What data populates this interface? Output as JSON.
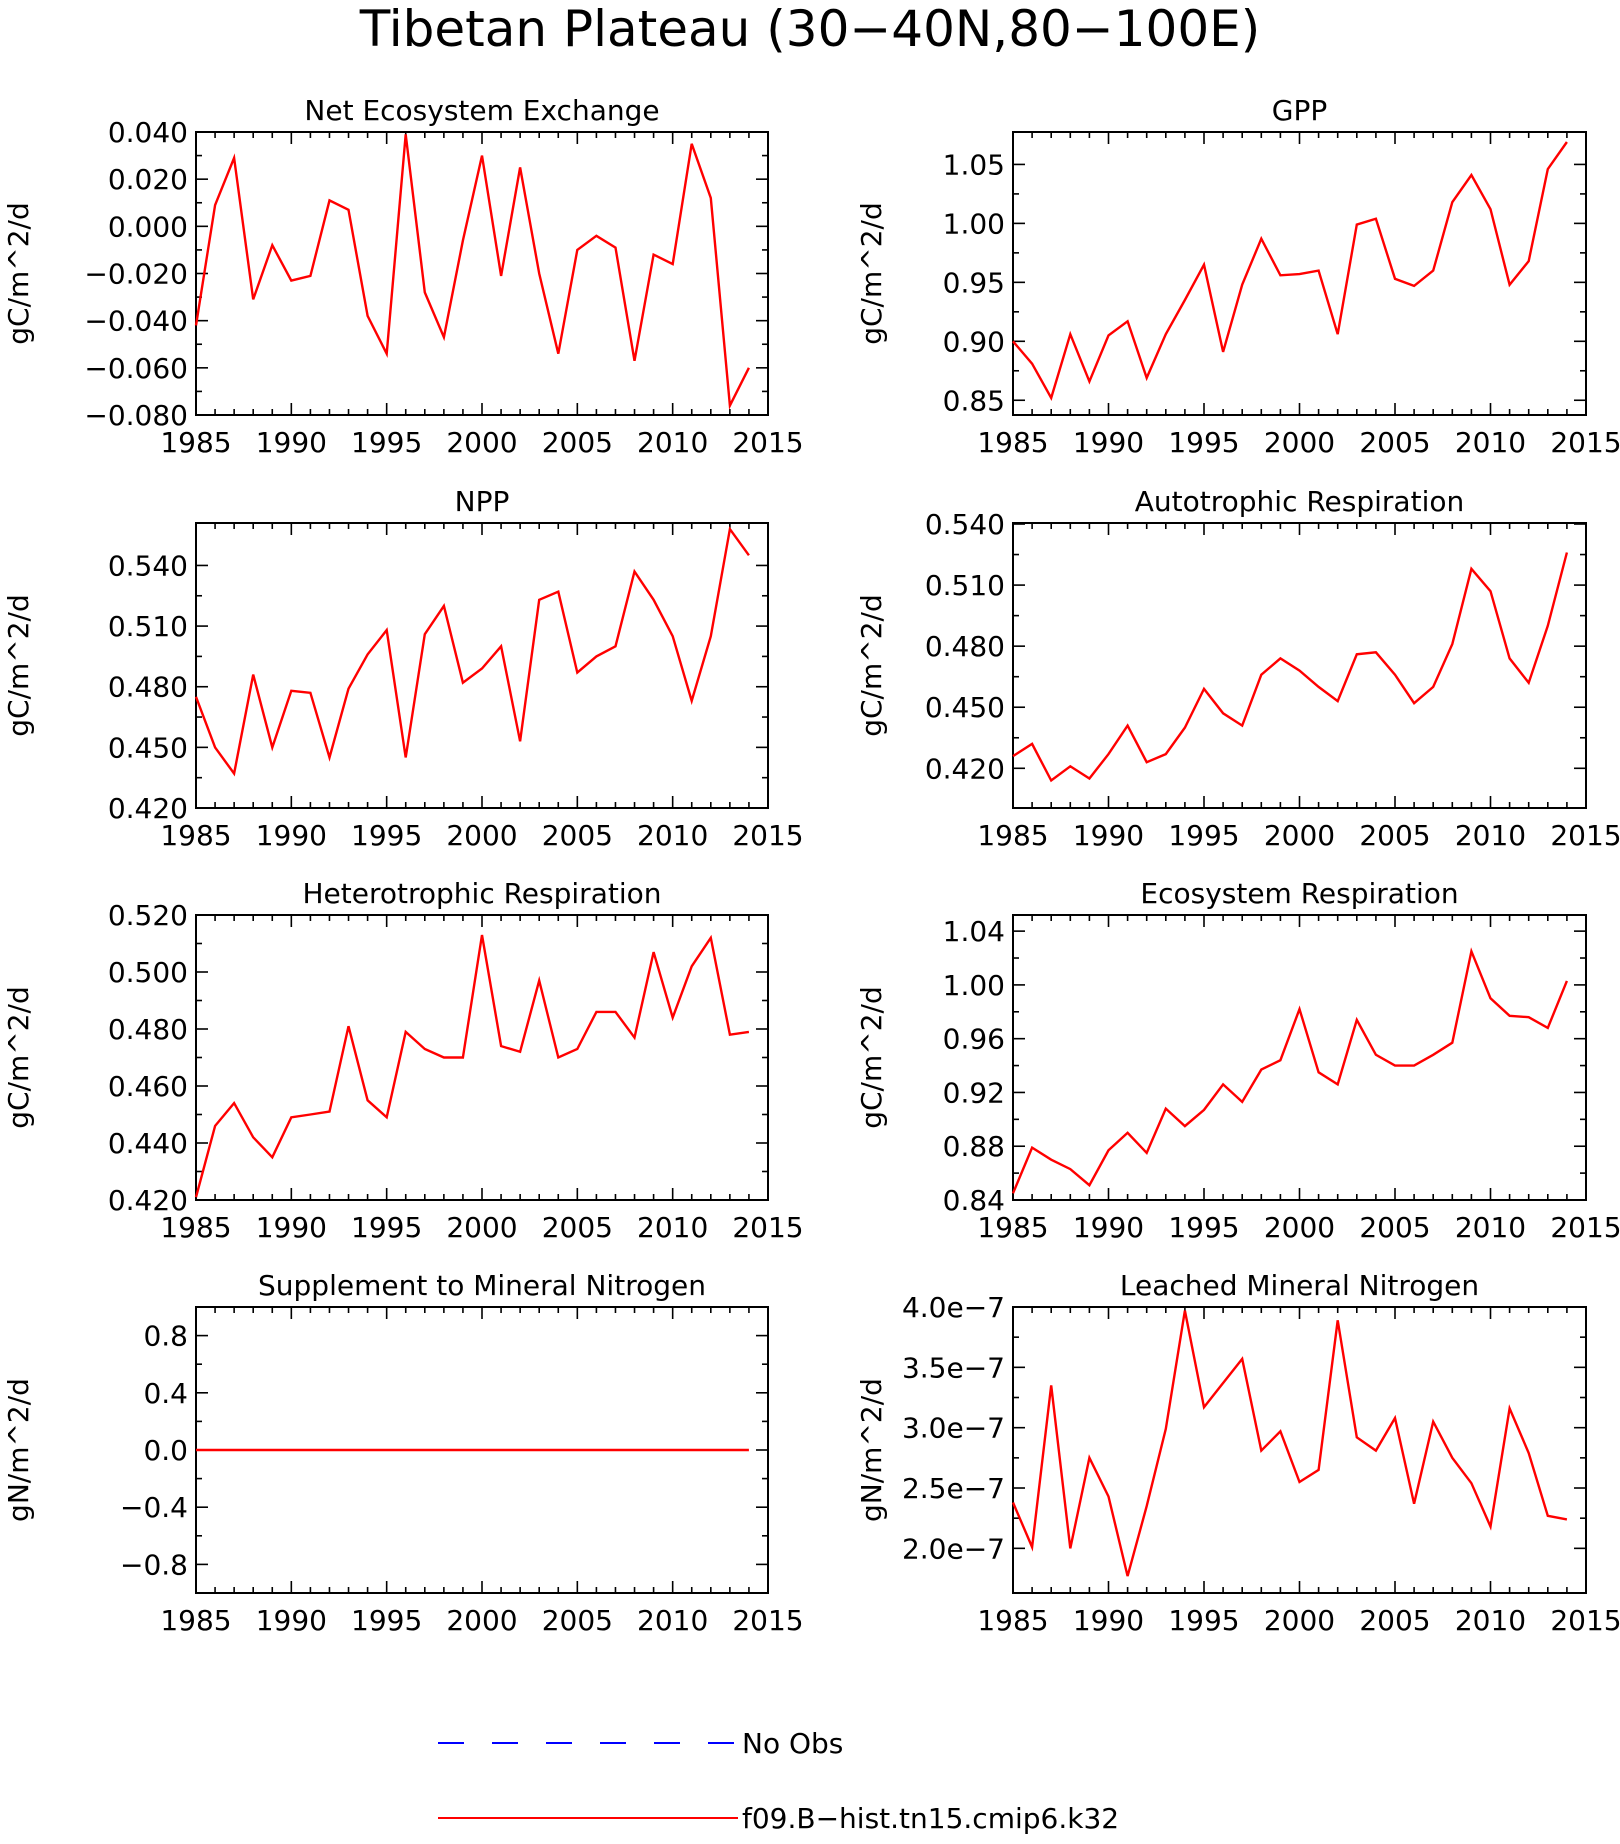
{
  "figure_title": "Tibetan Plateau (30−40N,80−100E)",
  "legend": [
    {
      "label": "No Obs",
      "color": "#0000ff",
      "dash": true
    },
    {
      "label": "f09.B−hist.tn15.cmip6.k32",
      "color": "#ff0000",
      "dash": false
    }
  ],
  "chart_data": [
    {
      "type": "line",
      "title": "Net Ecosystem Exchange",
      "ylabel": "gC/m^2/d",
      "xlabel": "",
      "xlim": [
        1985,
        2015
      ],
      "xticks": [
        1985,
        1990,
        1995,
        2000,
        2005,
        2010,
        2015
      ],
      "ylim": [
        -0.08,
        0.04
      ],
      "yticks": [
        -0.08,
        -0.06,
        -0.04,
        -0.02,
        0.0,
        0.02,
        0.04
      ],
      "ytick_labels": [
        "−0.080",
        "−0.060",
        "−0.040",
        "−0.020",
        "0.000",
        "0.020",
        "0.040"
      ],
      "x": [
        1985,
        1986,
        1987,
        1988,
        1989,
        1990,
        1991,
        1992,
        1993,
        1994,
        1995,
        1996,
        1997,
        1998,
        1999,
        2000,
        2001,
        2002,
        2003,
        2004,
        2005,
        2006,
        2007,
        2008,
        2009,
        2010,
        2011,
        2012,
        2013,
        2014
      ],
      "series": [
        {
          "name": "f09.B−hist.tn15.cmip6.k32",
          "color": "#ff0000",
          "values": [
            -0.042,
            0.009,
            0.029,
            -0.031,
            -0.008,
            -0.023,
            -0.021,
            0.011,
            0.007,
            -0.038,
            -0.054,
            0.039,
            -0.028,
            -0.047,
            -0.006,
            0.03,
            -0.021,
            0.025,
            -0.02,
            -0.054,
            -0.01,
            -0.004,
            -0.009,
            -0.057,
            -0.012,
            -0.016,
            0.035,
            0.012,
            -0.076,
            -0.06
          ]
        }
      ]
    },
    {
      "type": "line",
      "title": "GPP",
      "ylabel": "gC/m^2/d",
      "xlabel": "",
      "xlim": [
        1985,
        2015
      ],
      "xticks": [
        1985,
        1990,
        1995,
        2000,
        2005,
        2010,
        2015
      ],
      "ylim": [
        0.8375,
        1.0775
      ],
      "yticks": [
        0.85,
        0.9,
        0.95,
        1.0,
        1.05
      ],
      "ytick_labels": [
        "0.85",
        "0.90",
        "0.95",
        "1.00",
        "1.05"
      ],
      "x": [
        1985,
        1986,
        1987,
        1988,
        1989,
        1990,
        1991,
        1992,
        1993,
        1994,
        1995,
        1996,
        1997,
        1998,
        1999,
        2000,
        2001,
        2002,
        2003,
        2004,
        2005,
        2006,
        2007,
        2008,
        2009,
        2010,
        2011,
        2012,
        2013,
        2014
      ],
      "series": [
        {
          "name": "f09.B−hist.tn15.cmip6.k32",
          "color": "#ff0000",
          "values": [
            0.9,
            0.881,
            0.852,
            0.906,
            0.866,
            0.905,
            0.917,
            0.869,
            0.906,
            0.935,
            0.965,
            0.891,
            0.948,
            0.987,
            0.956,
            0.957,
            0.96,
            0.906,
            0.999,
            1.004,
            0.953,
            0.947,
            0.96,
            1.018,
            1.041,
            1.012,
            0.948,
            0.968,
            1.046,
            1.069
          ]
        }
      ]
    },
    {
      "type": "line",
      "title": "NPP",
      "ylabel": "gC/m^2/d",
      "xlabel": "",
      "xlim": [
        1985,
        2015
      ],
      "xticks": [
        1985,
        1990,
        1995,
        2000,
        2005,
        2010,
        2015
      ],
      "ylim": [
        0.42,
        0.561
      ],
      "yticks": [
        0.42,
        0.45,
        0.48,
        0.51,
        0.54
      ],
      "ytick_labels": [
        "0.420",
        "0.450",
        "0.480",
        "0.510",
        "0.540"
      ],
      "x": [
        1985,
        1986,
        1987,
        1988,
        1989,
        1990,
        1991,
        1992,
        1993,
        1994,
        1995,
        1996,
        1997,
        1998,
        1999,
        2000,
        2001,
        2002,
        2003,
        2004,
        2005,
        2006,
        2007,
        2008,
        2009,
        2010,
        2011,
        2012,
        2013,
        2014
      ],
      "series": [
        {
          "name": "f09.B−hist.tn15.cmip6.k32",
          "color": "#ff0000",
          "values": [
            0.475,
            0.45,
            0.437,
            0.486,
            0.45,
            0.478,
            0.477,
            0.445,
            0.479,
            0.496,
            0.508,
            0.445,
            0.506,
            0.52,
            0.482,
            0.489,
            0.5,
            0.453,
            0.523,
            0.527,
            0.487,
            0.495,
            0.5,
            0.537,
            0.523,
            0.505,
            0.473,
            0.505,
            0.558,
            0.545
          ]
        }
      ]
    },
    {
      "type": "line",
      "title": "Autotrophic Respiration",
      "ylabel": "gC/m^2/d",
      "xlabel": "",
      "xlim": [
        1985,
        2015
      ],
      "xticks": [
        1985,
        1990,
        1995,
        2000,
        2005,
        2010,
        2015
      ],
      "ylim": [
        0.4005,
        0.5405
      ],
      "yticks": [
        0.42,
        0.45,
        0.48,
        0.51,
        0.54
      ],
      "ytick_labels": [
        "0.420",
        "0.450",
        "0.480",
        "0.510",
        "0.540"
      ],
      "x": [
        1985,
        1986,
        1987,
        1988,
        1989,
        1990,
        1991,
        1992,
        1993,
        1994,
        1995,
        1996,
        1997,
        1998,
        1999,
        2000,
        2001,
        2002,
        2003,
        2004,
        2005,
        2006,
        2007,
        2008,
        2009,
        2010,
        2011,
        2012,
        2013,
        2014
      ],
      "series": [
        {
          "name": "f09.B−hist.tn15.cmip6.k32",
          "color": "#ff0000",
          "values": [
            0.426,
            0.432,
            0.414,
            0.421,
            0.415,
            0.427,
            0.441,
            0.423,
            0.427,
            0.44,
            0.459,
            0.447,
            0.441,
            0.466,
            0.474,
            0.468,
            0.46,
            0.453,
            0.476,
            0.477,
            0.466,
            0.452,
            0.46,
            0.481,
            0.518,
            0.507,
            0.474,
            0.462,
            0.49,
            0.526
          ]
        }
      ]
    },
    {
      "type": "line",
      "title": "Heterotrophic Respiration",
      "ylabel": "gC/m^2/d",
      "xlabel": "",
      "xlim": [
        1985,
        2015
      ],
      "xticks": [
        1985,
        1990,
        1995,
        2000,
        2005,
        2010,
        2015
      ],
      "ylim": [
        0.42,
        0.52
      ],
      "yticks": [
        0.42,
        0.44,
        0.46,
        0.48,
        0.5,
        0.52
      ],
      "ytick_labels": [
        "0.420",
        "0.440",
        "0.460",
        "0.480",
        "0.500",
        "0.520"
      ],
      "x": [
        1985,
        1986,
        1987,
        1988,
        1989,
        1990,
        1991,
        1992,
        1993,
        1994,
        1995,
        1996,
        1997,
        1998,
        1999,
        2000,
        2001,
        2002,
        2003,
        2004,
        2005,
        2006,
        2007,
        2008,
        2009,
        2010,
        2011,
        2012,
        2013,
        2014
      ],
      "series": [
        {
          "name": "f09.B−hist.tn15.cmip6.k32",
          "color": "#ff0000",
          "values": [
            0.421,
            0.446,
            0.454,
            0.442,
            0.435,
            0.449,
            0.45,
            0.451,
            0.481,
            0.455,
            0.449,
            0.479,
            0.473,
            0.47,
            0.47,
            0.513,
            0.474,
            0.472,
            0.497,
            0.47,
            0.473,
            0.486,
            0.486,
            0.477,
            0.507,
            0.484,
            0.502,
            0.512,
            0.478,
            0.479
          ]
        }
      ]
    },
    {
      "type": "line",
      "title": "Ecosystem Respiration",
      "ylabel": "gC/m^2/d",
      "xlabel": "",
      "xlim": [
        1985,
        2015
      ],
      "xticks": [
        1985,
        1990,
        1995,
        2000,
        2005,
        2010,
        2015
      ],
      "ylim": [
        0.84,
        1.052
      ],
      "yticks": [
        0.84,
        0.88,
        0.92,
        0.96,
        1.0,
        1.04
      ],
      "ytick_labels": [
        "0.84",
        "0.88",
        "0.92",
        "0.96",
        "1.00",
        "1.04"
      ],
      "x": [
        1985,
        1986,
        1987,
        1988,
        1989,
        1990,
        1991,
        1992,
        1993,
        1994,
        1995,
        1996,
        1997,
        1998,
        1999,
        2000,
        2001,
        2002,
        2003,
        2004,
        2005,
        2006,
        2007,
        2008,
        2009,
        2010,
        2011,
        2012,
        2013,
        2014
      ],
      "series": [
        {
          "name": "f09.B−hist.tn15.cmip6.k32",
          "color": "#ff0000",
          "values": [
            0.845,
            0.879,
            0.87,
            0.863,
            0.851,
            0.877,
            0.89,
            0.875,
            0.908,
            0.895,
            0.907,
            0.926,
            0.913,
            0.937,
            0.944,
            0.982,
            0.935,
            0.926,
            0.974,
            0.948,
            0.94,
            0.94,
            0.948,
            0.957,
            1.025,
            0.99,
            0.977,
            0.976,
            0.968,
            1.003
          ]
        }
      ]
    },
    {
      "type": "line",
      "title": "Supplement to Mineral Nitrogen",
      "ylabel": "gN/m^2/d",
      "xlabel": "",
      "xlim": [
        1985,
        2015
      ],
      "xticks": [
        1985,
        1990,
        1995,
        2000,
        2005,
        2010,
        2015
      ],
      "ylim": [
        -1.0,
        1.0
      ],
      "yticks": [
        -0.8,
        -0.4,
        0.0,
        0.4,
        0.8
      ],
      "ytick_labels": [
        "−0.8",
        "−0.4",
        "0.0",
        "0.4",
        "0.8"
      ],
      "x": [
        1985,
        1986,
        1987,
        1988,
        1989,
        1990,
        1991,
        1992,
        1993,
        1994,
        1995,
        1996,
        1997,
        1998,
        1999,
        2000,
        2001,
        2002,
        2003,
        2004,
        2005,
        2006,
        2007,
        2008,
        2009,
        2010,
        2011,
        2012,
        2013,
        2014
      ],
      "series": [
        {
          "name": "f09.B−hist.tn15.cmip6.k32",
          "color": "#ff0000",
          "values": [
            0,
            0,
            0,
            0,
            0,
            0,
            0,
            0,
            0,
            0,
            0,
            0,
            0,
            0,
            0,
            0,
            0,
            0,
            0,
            0,
            0,
            0,
            0,
            0,
            0,
            0,
            0,
            0,
            0,
            0
          ]
        }
      ]
    },
    {
      "type": "line",
      "title": "Leached Mineral Nitrogen",
      "ylabel": "gN/m^2/d",
      "xlabel": "",
      "xlim": [
        1985,
        2015
      ],
      "xticks": [
        1985,
        1990,
        1995,
        2000,
        2005,
        2010,
        2015
      ],
      "ylim": [
        1.63e-07,
        4e-07
      ],
      "yticks": [
        2e-07,
        2.5e-07,
        3e-07,
        3.5e-07,
        4e-07
      ],
      "ytick_labels": [
        "2.0e−7",
        "2.5e−7",
        "3.0e−7",
        "3.5e−7",
        "4.0e−7"
      ],
      "x": [
        1985,
        1986,
        1987,
        1988,
        1989,
        1990,
        1991,
        1992,
        1993,
        1994,
        1995,
        1996,
        1997,
        1998,
        1999,
        2000,
        2001,
        2002,
        2003,
        2004,
        2005,
        2006,
        2007,
        2008,
        2009,
        2010,
        2011,
        2012,
        2013,
        2014
      ],
      "series": [
        {
          "name": "f09.B−hist.tn15.cmip6.k32",
          "color": "#ff0000",
          "values": [
            2.38e-07,
            2.01e-07,
            3.35e-07,
            2e-07,
            2.75e-07,
            2.43e-07,
            1.77e-07,
            2.35e-07,
            2.99e-07,
            3.97e-07,
            3.17e-07,
            3.37e-07,
            3.57e-07,
            2.81e-07,
            2.97e-07,
            2.55e-07,
            2.65e-07,
            3.89e-07,
            2.92e-07,
            2.81e-07,
            3.08e-07,
            2.37e-07,
            3.05e-07,
            2.75e-07,
            2.54e-07,
            2.18e-07,
            3.16e-07,
            2.79e-07,
            2.27e-07,
            2.24e-07
          ]
        }
      ]
    }
  ]
}
